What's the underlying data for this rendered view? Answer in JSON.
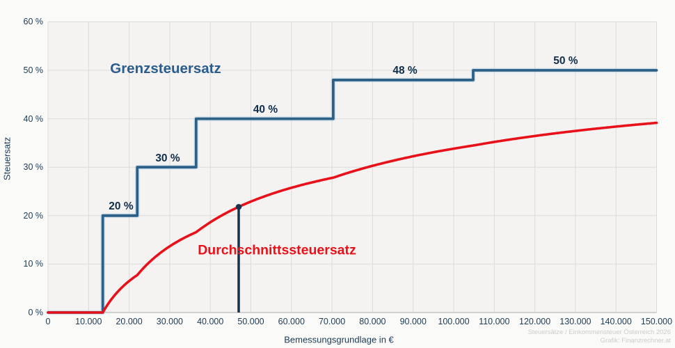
{
  "chart_data": {
    "type": "line",
    "title": "",
    "xlabel": "Bemessungsgrundlage in €",
    "ylabel": "Steuersatz",
    "xlim": [
      0,
      150000
    ],
    "ylim": [
      0,
      60
    ],
    "grid": true,
    "legend_position": "inline-labels",
    "x_ticks": {
      "values": [
        0,
        10000,
        20000,
        30000,
        40000,
        50000,
        60000,
        70000,
        80000,
        90000,
        100000,
        110000,
        120000,
        130000,
        140000,
        150000
      ],
      "labels": [
        "0",
        "10.000",
        "20.000",
        "30.000",
        "40.000",
        "50.000",
        "60.000",
        "70.000",
        "80.000",
        "90.000",
        "100.000",
        "110.000",
        "120.000",
        "130.000",
        "140.000",
        "150.000"
      ]
    },
    "y_ticks": {
      "values": [
        0,
        10,
        20,
        30,
        40,
        50,
        60
      ],
      "labels": [
        "0 %",
        "10 %",
        "20 %",
        "30 %",
        "40 %",
        "50 %",
        "60 %"
      ]
    },
    "series": [
      {
        "name": "Grenzsteuersatz",
        "type": "step",
        "color": "#2d6086",
        "halo_color": "#bed6e8",
        "label_color": "#0f2e4b",
        "brackets": {
          "thresholds": [
            13500,
            22000,
            36500,
            70300,
            104800
          ],
          "rates": [
            0,
            20,
            30,
            40,
            48,
            50
          ]
        },
        "step_labels": [
          {
            "text": "20 %",
            "x": 18000,
            "y": 21.8
          },
          {
            "text": "30 %",
            "x": 29500,
            "y": 31.7
          },
          {
            "text": "40 %",
            "x": 53600,
            "y": 41.8
          },
          {
            "text": "48 %",
            "x": 88000,
            "y": 49.8
          },
          {
            "text": "50 %",
            "x": 127600,
            "y": 51.9
          }
        ],
        "series_label_pos": {
          "x": 29000,
          "y": 50.3
        }
      },
      {
        "name": "Durchschnittssteuersatz",
        "type": "line",
        "color": "#e8111a",
        "sampled_points": {
          "x": [
            0,
            10000,
            13500,
            20000,
            30000,
            40000,
            50000,
            60000,
            70000,
            80000,
            90000,
            100000,
            110000,
            120000,
            130000,
            140000,
            150000
          ],
          "y": [
            0,
            0,
            0,
            6.5,
            13.7,
            18.6,
            22.9,
            25.8,
            27.8,
            30.3,
            32.3,
            33.8,
            35.2,
            36.4,
            37.5,
            38.4,
            39.2
          ]
        },
        "series_label_pos": {
          "x": 56400,
          "y": 12.9
        }
      }
    ],
    "marker": {
      "x": 47000,
      "y": 21.8,
      "color": "#16334f"
    }
  },
  "attribution": {
    "line1": "Steuersätze / Einkommensteuer Österreich 2026",
    "line2": "Grafik: Finanzrechner.at"
  },
  "colors": {
    "page_bg": "#fafaf8",
    "plot_bg": "#f4f3f1",
    "grid": "#dcdbd8",
    "axis": "#c6c5c2",
    "tick_text": "#1d3a54"
  }
}
